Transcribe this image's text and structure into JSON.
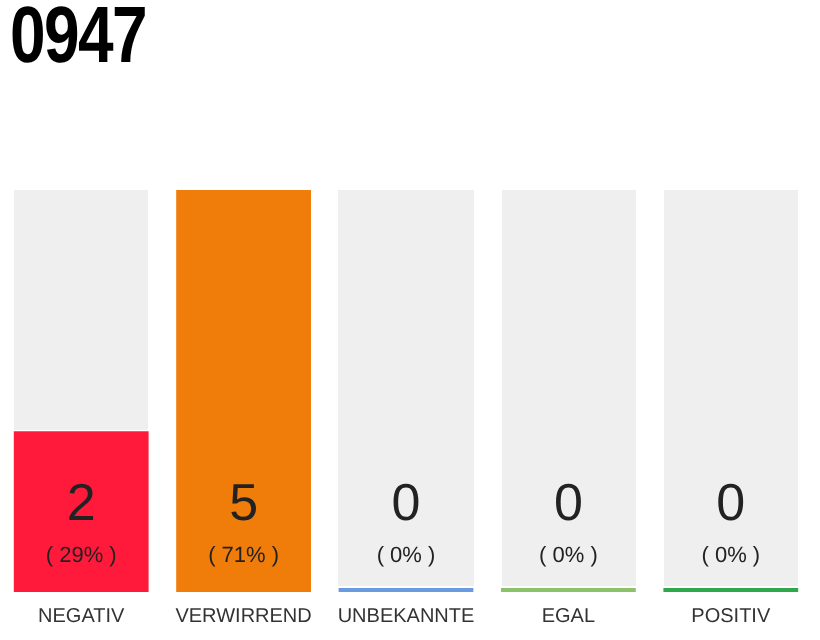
{
  "chart_data": {
    "type": "bar",
    "title": "0947",
    "categories": [
      "NEGATIV",
      "VERWIRREND",
      "UNBEKANNTE",
      "EGAL",
      "POSITIV"
    ],
    "values": [
      2,
      5,
      0,
      0,
      0
    ],
    "colors": [
      "#ff1a3c",
      "#f07c0a",
      "#6a9be0",
      "#8cc26a",
      "#2ea84a"
    ],
    "value_labels": [
      "2\n( 29% )",
      "5\n( 71% )",
      "0\n( 0% )",
      "0\n( 0% )",
      "0\n( 0% )"
    ],
    "ylim": [
      0,
      5
    ],
    "tick_labels": "x",
    "grid": false,
    "legend": false
  }
}
